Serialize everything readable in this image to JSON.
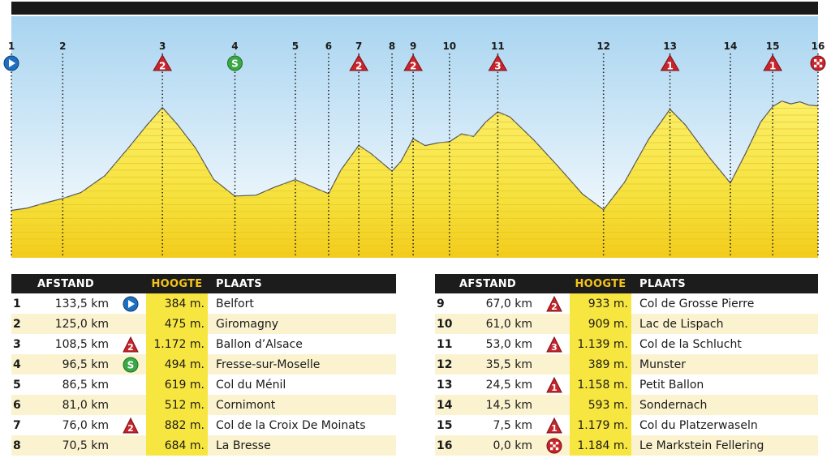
{
  "chart_data": {
    "type": "area",
    "title": "",
    "xlabel": "",
    "ylabel": "",
    "x_reversed": true,
    "x_range_km": [
      133.5,
      0
    ],
    "y_range_m": [
      300,
      1250
    ],
    "fill_color": "#f6e23e",
    "sky_color": "#a8d4f0",
    "points": [
      {
        "id": "1",
        "km": 133.5,
        "elev": 384,
        "marker": "start"
      },
      {
        "id": "2",
        "km": 125.0,
        "elev": 475,
        "marker": ""
      },
      {
        "id": "3",
        "km": 108.5,
        "elev": 1172,
        "marker": "2"
      },
      {
        "id": "4",
        "km": 96.5,
        "elev": 494,
        "marker": "sprint"
      },
      {
        "id": "5",
        "km": 86.5,
        "elev": 619,
        "marker": ""
      },
      {
        "id": "6",
        "km": 81.0,
        "elev": 512,
        "marker": ""
      },
      {
        "id": "7",
        "km": 76.0,
        "elev": 882,
        "marker": "2"
      },
      {
        "id": "8",
        "km": 70.5,
        "elev": 684,
        "marker": ""
      },
      {
        "id": "9",
        "km": 67.0,
        "elev": 933,
        "marker": "2"
      },
      {
        "id": "10",
        "km": 61.0,
        "elev": 909,
        "marker": ""
      },
      {
        "id": "11",
        "km": 53.0,
        "elev": 1139,
        "marker": "3"
      },
      {
        "id": "12",
        "km": 35.5,
        "elev": 389,
        "marker": ""
      },
      {
        "id": "13",
        "km": 24.5,
        "elev": 1158,
        "marker": "1"
      },
      {
        "id": "14",
        "km": 14.5,
        "elev": 593,
        "marker": ""
      },
      {
        "id": "15",
        "km": 7.5,
        "elev": 1179,
        "marker": "1"
      },
      {
        "id": "16",
        "km": 0.0,
        "elev": 1184,
        "marker": "finish"
      }
    ],
    "profile": [
      [
        133.5,
        384
      ],
      [
        131,
        400
      ],
      [
        128,
        440
      ],
      [
        125,
        475
      ],
      [
        122,
        520
      ],
      [
        118,
        650
      ],
      [
        114,
        870
      ],
      [
        111,
        1040
      ],
      [
        108.5,
        1172
      ],
      [
        106,
        1040
      ],
      [
        103,
        860
      ],
      [
        100,
        620
      ],
      [
        97,
        510
      ],
      [
        96.5,
        494
      ],
      [
        93,
        500
      ],
      [
        90,
        560
      ],
      [
        86.5,
        619
      ],
      [
        84,
        570
      ],
      [
        81,
        512
      ],
      [
        79,
        690
      ],
      [
        76,
        882
      ],
      [
        74,
        820
      ],
      [
        70.5,
        684
      ],
      [
        69,
        760
      ],
      [
        67,
        933
      ],
      [
        65,
        880
      ],
      [
        63,
        900
      ],
      [
        61,
        909
      ],
      [
        59,
        970
      ],
      [
        57,
        950
      ],
      [
        55,
        1060
      ],
      [
        53,
        1139
      ],
      [
        51,
        1100
      ],
      [
        47,
        920
      ],
      [
        43,
        720
      ],
      [
        39,
        510
      ],
      [
        35.5,
        389
      ],
      [
        32,
        600
      ],
      [
        28,
        930
      ],
      [
        24.5,
        1158
      ],
      [
        22,
        1040
      ],
      [
        18,
        790
      ],
      [
        14.5,
        593
      ],
      [
        12,
        820
      ],
      [
        9.5,
        1060
      ],
      [
        7.5,
        1179
      ],
      [
        6,
        1220
      ],
      [
        4.5,
        1200
      ],
      [
        3,
        1215
      ],
      [
        1.5,
        1190
      ],
      [
        0,
        1184
      ]
    ]
  },
  "table_headers": {
    "afstand": "AFSTAND",
    "hoogte": "HOOGTE",
    "plaats": "PLAATS"
  },
  "rows_left": [
    {
      "num": "1",
      "km": "133,5 km",
      "icon": "start",
      "icon_label": "",
      "hoogte": "384 m.",
      "plaats": "Belfort"
    },
    {
      "num": "2",
      "km": "125,0 km",
      "icon": "",
      "icon_label": "",
      "hoogte": "475 m.",
      "plaats": "Giromagny"
    },
    {
      "num": "3",
      "km": "108,5 km",
      "icon": "climb",
      "icon_label": "2",
      "hoogte": "1.172 m.",
      "plaats": "Ballon d’Alsace"
    },
    {
      "num": "4",
      "km": "96,5 km",
      "icon": "sprint",
      "icon_label": "S",
      "hoogte": "494 m.",
      "plaats": "Fresse-sur-Moselle"
    },
    {
      "num": "5",
      "km": "86,5 km",
      "icon": "",
      "icon_label": "",
      "hoogte": "619 m.",
      "plaats": "Col du Ménil"
    },
    {
      "num": "6",
      "km": "81,0 km",
      "icon": "",
      "icon_label": "",
      "hoogte": "512 m.",
      "plaats": "Cornimont"
    },
    {
      "num": "7",
      "km": "76,0 km",
      "icon": "climb",
      "icon_label": "2",
      "hoogte": "882 m.",
      "plaats": "Col de la Croix De Moinats"
    },
    {
      "num": "8",
      "km": "70,5 km",
      "icon": "",
      "icon_label": "",
      "hoogte": "684 m.",
      "plaats": "La Bresse"
    }
  ],
  "rows_right": [
    {
      "num": "9",
      "km": "67,0 km",
      "icon": "climb",
      "icon_label": "2",
      "hoogte": "933 m.",
      "plaats": "Col de Grosse Pierre"
    },
    {
      "num": "10",
      "km": "61,0 km",
      "icon": "",
      "icon_label": "",
      "hoogte": "909 m.",
      "plaats": "Lac de Lispach"
    },
    {
      "num": "11",
      "km": "53,0 km",
      "icon": "climb",
      "icon_label": "3",
      "hoogte": "1.139 m.",
      "plaats": "Col de la Schlucht"
    },
    {
      "num": "12",
      "km": "35,5 km",
      "icon": "",
      "icon_label": "",
      "hoogte": "389 m.",
      "plaats": "Munster"
    },
    {
      "num": "13",
      "km": "24,5 km",
      "icon": "climb",
      "icon_label": "1",
      "hoogte": "1.158 m.",
      "plaats": "Petit Ballon"
    },
    {
      "num": "14",
      "km": "14,5 km",
      "icon": "",
      "icon_label": "",
      "hoogte": "593 m.",
      "plaats": "Sondernach"
    },
    {
      "num": "15",
      "km": "7,5 km",
      "icon": "climb",
      "icon_label": "1",
      "hoogte": "1.179 m.",
      "plaats": "Col du Platzerwaseln"
    },
    {
      "num": "16",
      "km": "0,0 km",
      "icon": "finish",
      "icon_label": "",
      "hoogte": "1.184 m.",
      "plaats": "Le Markstein Fellering"
    }
  ]
}
